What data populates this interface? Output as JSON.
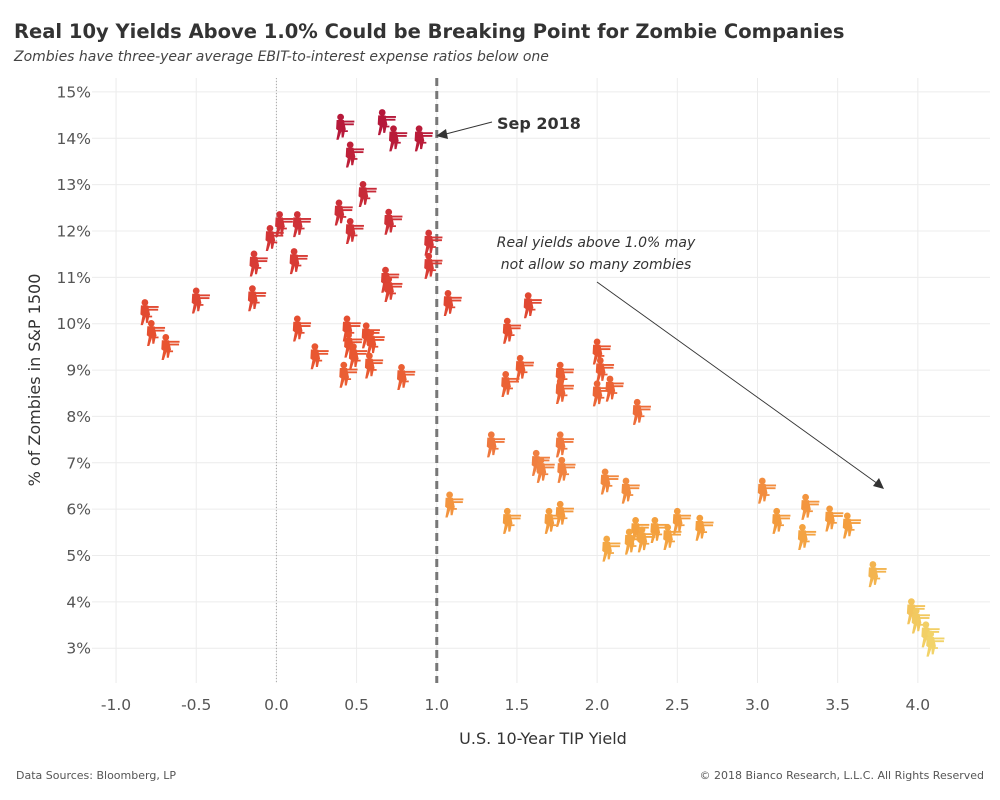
{
  "header": {
    "title": "Real 10y Yields Above 1.0% Could be Breaking Point for Zombie Companies",
    "subtitle": "Zombies have three-year average EBIT-to-interest expense ratios below one"
  },
  "footer": {
    "source": "Data Sources: Bloomberg, LP",
    "copyright": "© 2018 Bianco Research, L.L.C. All Rights Reserved"
  },
  "marker_icon": "zombie-icon",
  "colors": {
    "high": "#b3163a",
    "mid": "#e8532f",
    "low": "#f4a03e",
    "lowest": "#f2d46a",
    "reference_line": "#777777"
  },
  "chart_data": {
    "type": "scatter",
    "title": "Real 10y Yields Above 1.0% Could be Breaking Point for Zombie Companies",
    "subtitle": "Zombies have three-year average EBIT-to-interest expense ratios below one",
    "xlabel": "U.S. 10-Year TIP Yield",
    "ylabel": "% of Zombies in S&P 1500",
    "xlim": [
      -1.15,
      4.45
    ],
    "ylim": [
      2.25,
      15.3
    ],
    "x_ticks": [
      "-1.0",
      "-0.5",
      "0.0",
      "0.5",
      "1.0",
      "1.5",
      "2.0",
      "2.5",
      "3.0",
      "3.5",
      "4.0"
    ],
    "x_tick_values": [
      -1.0,
      -0.5,
      0.0,
      0.5,
      1.0,
      1.5,
      2.0,
      2.5,
      3.0,
      3.5,
      4.0
    ],
    "y_ticks": [
      "3%",
      "4%",
      "5%",
      "6%",
      "7%",
      "8%",
      "9%",
      "10%",
      "11%",
      "12%",
      "13%",
      "14%",
      "15%"
    ],
    "y_tick_values": [
      3,
      4,
      5,
      6,
      7,
      8,
      9,
      10,
      11,
      12,
      13,
      14,
      15
    ],
    "grid": true,
    "reference_line": {
      "x": 1.0,
      "style": "dashed"
    },
    "annotations": [
      {
        "text": "Sep 2018",
        "x": 1.35,
        "y": 14.25
      },
      {
        "lines": [
          "Real yields above 1.0% may",
          "not allow so many zombies"
        ],
        "x": 2.2,
        "y": 11.5
      }
    ],
    "points": [
      {
        "x": 0.4,
        "y": 14.2
      },
      {
        "x": 0.66,
        "y": 14.3
      },
      {
        "x": 0.73,
        "y": 13.95
      },
      {
        "x": 0.89,
        "y": 13.95
      },
      {
        "x": 0.46,
        "y": 13.6
      },
      {
        "x": 0.54,
        "y": 12.75
      },
      {
        "x": 0.39,
        "y": 12.35
      },
      {
        "x": 0.7,
        "y": 12.15
      },
      {
        "x": 0.46,
        "y": 11.95
      },
      {
        "x": 0.13,
        "y": 12.1
      },
      {
        "x": 0.02,
        "y": 12.1
      },
      {
        "x": -0.04,
        "y": 11.8
      },
      {
        "x": 0.95,
        "y": 11.7
      },
      {
        "x": -0.14,
        "y": 11.25
      },
      {
        "x": 0.11,
        "y": 11.3
      },
      {
        "x": 0.95,
        "y": 11.2
      },
      {
        "x": 0.68,
        "y": 10.9
      },
      {
        "x": 0.7,
        "y": 10.7
      },
      {
        "x": -0.15,
        "y": 10.5
      },
      {
        "x": -0.5,
        "y": 10.45
      },
      {
        "x": -0.82,
        "y": 10.2
      },
      {
        "x": 1.07,
        "y": 10.4
      },
      {
        "x": 1.57,
        "y": 10.35
      },
      {
        "x": 0.13,
        "y": 9.85
      },
      {
        "x": 0.44,
        "y": 9.85
      },
      {
        "x": 1.44,
        "y": 9.8
      },
      {
        "x": -0.78,
        "y": 9.75
      },
      {
        "x": 0.56,
        "y": 9.7
      },
      {
        "x": 0.59,
        "y": 9.55
      },
      {
        "x": 0.45,
        "y": 9.5
      },
      {
        "x": -0.69,
        "y": 9.45
      },
      {
        "x": 0.24,
        "y": 9.25
      },
      {
        "x": 2.0,
        "y": 9.35
      },
      {
        "x": 0.48,
        "y": 9.25
      },
      {
        "x": 1.52,
        "y": 9.0
      },
      {
        "x": 0.58,
        "y": 9.05
      },
      {
        "x": 0.42,
        "y": 8.85
      },
      {
        "x": 0.78,
        "y": 8.8
      },
      {
        "x": 1.77,
        "y": 8.85
      },
      {
        "x": 2.02,
        "y": 8.95
      },
      {
        "x": 2.08,
        "y": 8.55
      },
      {
        "x": 1.43,
        "y": 8.65
      },
      {
        "x": 1.77,
        "y": 8.5
      },
      {
        "x": 2.0,
        "y": 8.45
      },
      {
        "x": 2.25,
        "y": 8.05
      },
      {
        "x": 1.34,
        "y": 7.35
      },
      {
        "x": 1.77,
        "y": 7.35
      },
      {
        "x": 1.62,
        "y": 6.95
      },
      {
        "x": 1.65,
        "y": 6.8
      },
      {
        "x": 1.78,
        "y": 6.8
      },
      {
        "x": 2.05,
        "y": 6.55
      },
      {
        "x": 2.18,
        "y": 6.35
      },
      {
        "x": 3.03,
        "y": 6.35
      },
      {
        "x": 1.08,
        "y": 6.05
      },
      {
        "x": 3.3,
        "y": 6.0
      },
      {
        "x": 1.77,
        "y": 5.85
      },
      {
        "x": 2.5,
        "y": 5.7
      },
      {
        "x": 3.45,
        "y": 5.75
      },
      {
        "x": 1.44,
        "y": 5.7
      },
      {
        "x": 1.7,
        "y": 5.7
      },
      {
        "x": 3.12,
        "y": 5.7
      },
      {
        "x": 2.64,
        "y": 5.55
      },
      {
        "x": 3.56,
        "y": 5.6
      },
      {
        "x": 2.24,
        "y": 5.5
      },
      {
        "x": 2.36,
        "y": 5.5
      },
      {
        "x": 2.44,
        "y": 5.35
      },
      {
        "x": 2.28,
        "y": 5.3
      },
      {
        "x": 2.2,
        "y": 5.25
      },
      {
        "x": 3.28,
        "y": 5.35
      },
      {
        "x": 2.06,
        "y": 5.1
      },
      {
        "x": 3.72,
        "y": 4.55
      },
      {
        "x": 3.96,
        "y": 3.75
      },
      {
        "x": 3.99,
        "y": 3.55
      },
      {
        "x": 4.05,
        "y": 3.25
      },
      {
        "x": 4.08,
        "y": 3.05
      }
    ]
  }
}
